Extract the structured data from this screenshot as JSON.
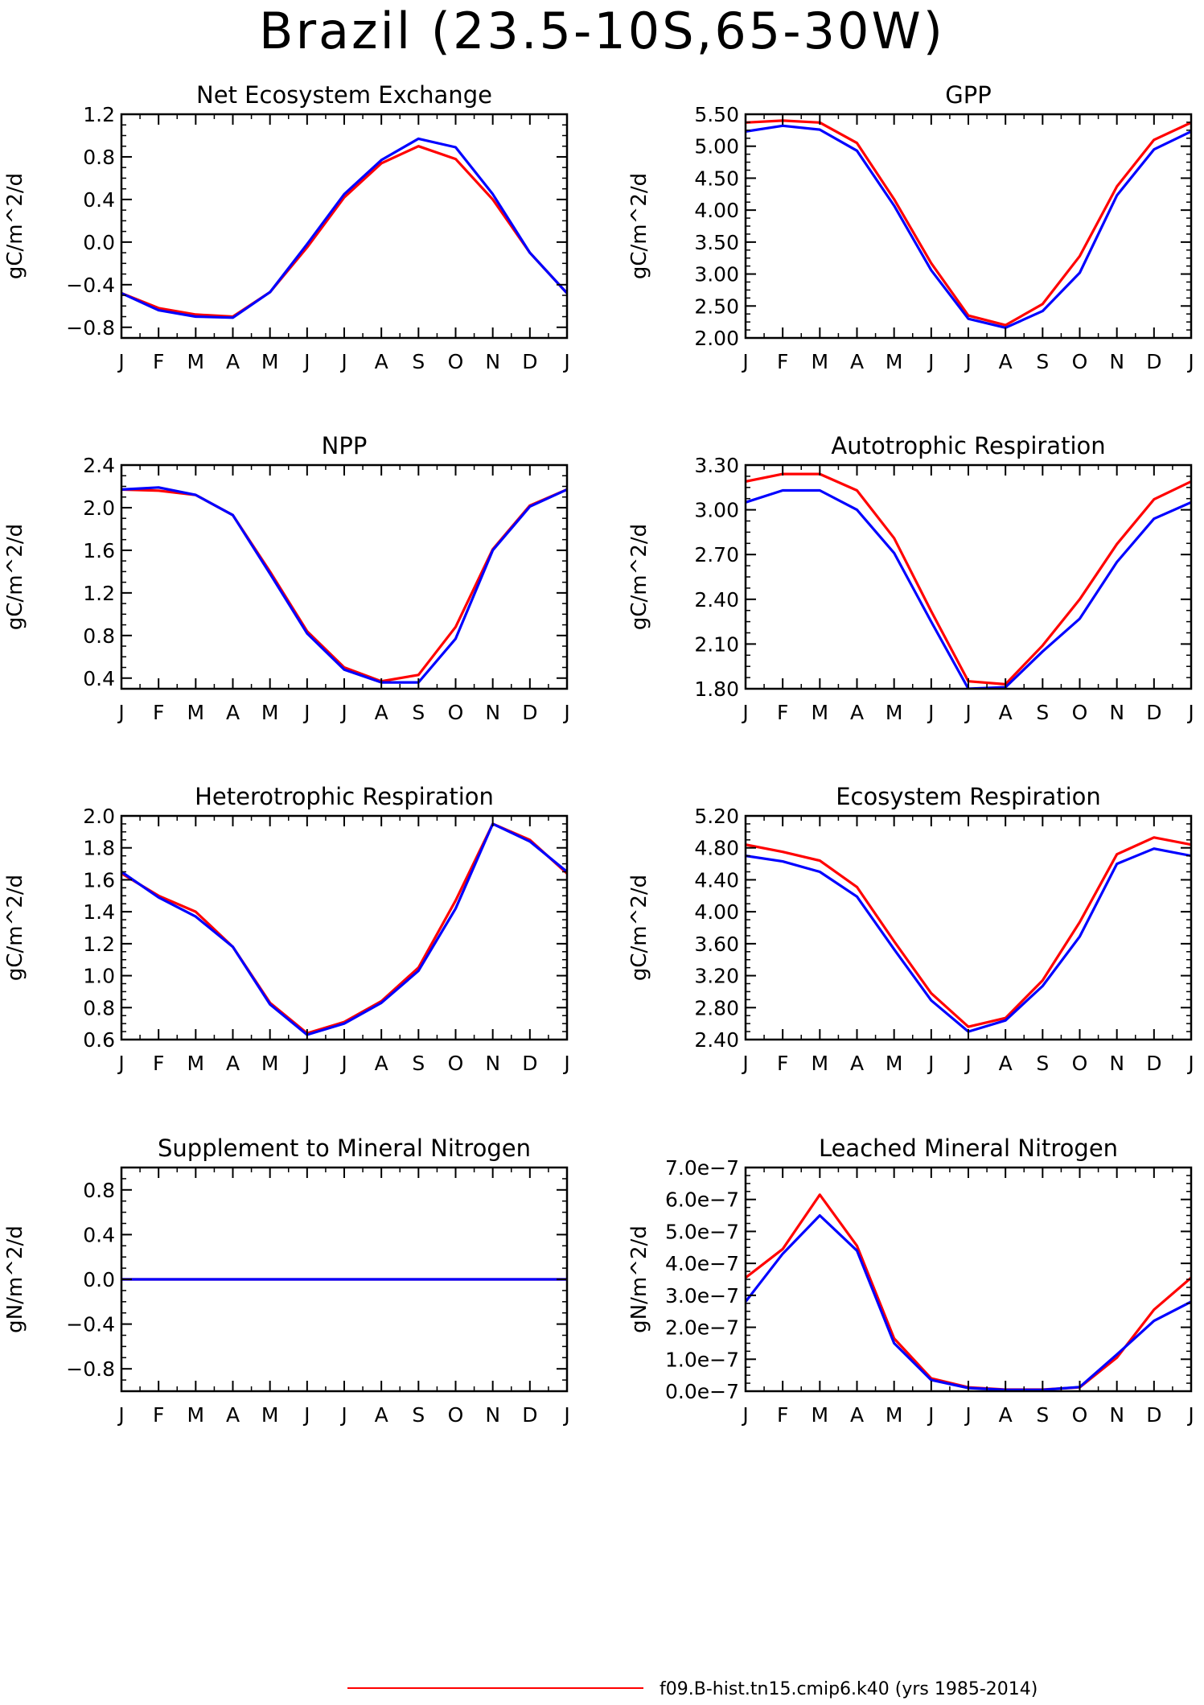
{
  "page": {
    "title": "Brazil (23.5-10S,65-30W)"
  },
  "legend": {
    "entries": [
      {
        "label": "f09.B-hist.tn15.cmip6.k40 (yrs 1985-2014)",
        "color": "#ff0000"
      }
    ]
  },
  "colors": {
    "series_red": "#ff0000",
    "series_blue": "#0000ff"
  },
  "chart_data": [
    {
      "type": "line",
      "title": "Net Ecosystem Exchange",
      "ylabel": "gC/m^2/d",
      "x": [
        "J",
        "F",
        "M",
        "A",
        "M",
        "J",
        "J",
        "A",
        "S",
        "O",
        "N",
        "D",
        "J"
      ],
      "ylim": [
        -0.9,
        1.2
      ],
      "yticks": [
        -0.8,
        -0.4,
        0.0,
        0.4,
        0.8,
        1.2
      ],
      "ytick_labels": [
        "−0.8",
        "−0.4",
        "0.0",
        "0.4",
        "0.8",
        "1.2"
      ],
      "series": [
        {
          "color": "#ff0000",
          "values": [
            -0.48,
            -0.62,
            -0.68,
            -0.7,
            -0.47,
            -0.05,
            0.42,
            0.74,
            0.9,
            0.78,
            0.4,
            -0.1,
            -0.48
          ]
        },
        {
          "color": "#0000ff",
          "values": [
            -0.48,
            -0.64,
            -0.7,
            -0.71,
            -0.47,
            -0.02,
            0.45,
            0.77,
            0.97,
            0.89,
            0.45,
            -0.1,
            -0.48
          ]
        }
      ]
    },
    {
      "type": "line",
      "title": "GPP",
      "ylabel": "gC/m^2/d",
      "x": [
        "J",
        "F",
        "M",
        "A",
        "M",
        "J",
        "J",
        "A",
        "S",
        "O",
        "N",
        "D",
        "J"
      ],
      "ylim": [
        2.0,
        5.5
      ],
      "yticks": [
        2.0,
        2.5,
        3.0,
        3.5,
        4.0,
        4.5,
        5.0,
        5.5
      ],
      "ytick_labels": [
        "2.00",
        "2.50",
        "3.00",
        "3.50",
        "4.00",
        "4.50",
        "5.00",
        "5.50"
      ],
      "series": [
        {
          "color": "#ff0000",
          "values": [
            5.37,
            5.4,
            5.37,
            5.05,
            4.17,
            3.17,
            2.35,
            2.2,
            2.53,
            3.28,
            4.37,
            5.1,
            5.37
          ]
        },
        {
          "color": "#0000ff",
          "values": [
            5.23,
            5.32,
            5.26,
            4.93,
            4.07,
            3.06,
            2.3,
            2.16,
            2.42,
            3.02,
            4.23,
            4.95,
            5.23
          ]
        }
      ]
    },
    {
      "type": "line",
      "title": "NPP",
      "ylabel": "gC/m^2/d",
      "x": [
        "J",
        "F",
        "M",
        "A",
        "M",
        "J",
        "J",
        "A",
        "S",
        "O",
        "N",
        "D",
        "J"
      ],
      "ylim": [
        0.3,
        2.4
      ],
      "yticks": [
        0.4,
        0.8,
        1.2,
        1.6,
        2.0,
        2.4
      ],
      "ytick_labels": [
        "0.4",
        "0.8",
        "1.2",
        "1.6",
        "2.0",
        "2.4"
      ],
      "series": [
        {
          "color": "#ff0000",
          "values": [
            2.17,
            2.16,
            2.12,
            1.93,
            1.4,
            0.84,
            0.5,
            0.37,
            0.43,
            0.88,
            1.61,
            2.02,
            2.17
          ]
        },
        {
          "color": "#0000ff",
          "values": [
            2.17,
            2.19,
            2.12,
            1.93,
            1.38,
            0.82,
            0.48,
            0.36,
            0.36,
            0.77,
            1.6,
            2.01,
            2.17
          ]
        }
      ]
    },
    {
      "type": "line",
      "title": "Autotrophic Respiration",
      "ylabel": "gC/m^2/d",
      "x": [
        "J",
        "F",
        "M",
        "A",
        "M",
        "J",
        "J",
        "A",
        "S",
        "O",
        "N",
        "D",
        "J"
      ],
      "ylim": [
        1.8,
        3.3
      ],
      "yticks": [
        1.8,
        2.1,
        2.4,
        2.7,
        3.0,
        3.3
      ],
      "ytick_labels": [
        "1.80",
        "2.10",
        "2.40",
        "2.70",
        "3.00",
        "3.30"
      ],
      "series": [
        {
          "color": "#ff0000",
          "values": [
            3.19,
            3.24,
            3.24,
            3.13,
            2.81,
            2.32,
            1.85,
            1.83,
            2.09,
            2.4,
            2.77,
            3.07,
            3.19
          ]
        },
        {
          "color": "#0000ff",
          "values": [
            3.05,
            3.13,
            3.13,
            3.0,
            2.71,
            2.25,
            1.8,
            1.81,
            2.05,
            2.27,
            2.65,
            2.94,
            3.05
          ]
        }
      ]
    },
    {
      "type": "line",
      "title": "Heterotrophic Respiration",
      "ylabel": "gC/m^2/d",
      "x": [
        "J",
        "F",
        "M",
        "A",
        "M",
        "J",
        "J",
        "A",
        "S",
        "O",
        "N",
        "D",
        "J"
      ],
      "ylim": [
        0.6,
        2.0
      ],
      "yticks": [
        0.6,
        0.8,
        1.0,
        1.2,
        1.4,
        1.6,
        1.8,
        2.0
      ],
      "ytick_labels": [
        "0.6",
        "0.8",
        "1.0",
        "1.2",
        "1.4",
        "1.6",
        "1.8",
        "2.0"
      ],
      "series": [
        {
          "color": "#ff0000",
          "values": [
            1.64,
            1.5,
            1.4,
            1.18,
            0.83,
            0.64,
            0.71,
            0.84,
            1.05,
            1.47,
            1.95,
            1.85,
            1.64
          ]
        },
        {
          "color": "#0000ff",
          "values": [
            1.65,
            1.49,
            1.37,
            1.18,
            0.82,
            0.63,
            0.7,
            0.83,
            1.03,
            1.42,
            1.95,
            1.84,
            1.65
          ]
        }
      ]
    },
    {
      "type": "line",
      "title": "Ecosystem Respiration",
      "ylabel": "gC/m^2/d",
      "x": [
        "J",
        "F",
        "M",
        "A",
        "M",
        "J",
        "J",
        "A",
        "S",
        "O",
        "N",
        "D",
        "J"
      ],
      "ylim": [
        2.4,
        5.2
      ],
      "yticks": [
        2.4,
        2.8,
        3.2,
        3.6,
        4.0,
        4.4,
        4.8,
        5.2
      ],
      "ytick_labels": [
        "2.40",
        "2.80",
        "3.20",
        "3.60",
        "4.00",
        "4.40",
        "4.80",
        "5.20"
      ],
      "series": [
        {
          "color": "#ff0000",
          "values": [
            4.84,
            4.75,
            4.64,
            4.31,
            3.63,
            2.98,
            2.56,
            2.67,
            3.14,
            3.87,
            4.72,
            4.93,
            4.84
          ]
        },
        {
          "color": "#0000ff",
          "values": [
            4.7,
            4.63,
            4.5,
            4.19,
            3.53,
            2.89,
            2.5,
            2.64,
            3.07,
            3.69,
            4.6,
            4.79,
            4.7
          ]
        }
      ]
    },
    {
      "type": "line",
      "title": "Supplement to Mineral Nitrogen",
      "ylabel": "gN/m^2/d",
      "x": [
        "J",
        "F",
        "M",
        "A",
        "M",
        "J",
        "J",
        "A",
        "S",
        "O",
        "N",
        "D",
        "J"
      ],
      "ylim": [
        -1.0,
        1.0
      ],
      "yticks": [
        -0.8,
        -0.4,
        0.0,
        0.4,
        0.8
      ],
      "ytick_labels": [
        "−0.8",
        "−0.4",
        "0.0",
        "0.4",
        "0.8"
      ],
      "series": [
        {
          "color": "#ff0000",
          "values": [
            0,
            0,
            0,
            0,
            0,
            0,
            0,
            0,
            0,
            0,
            0,
            0,
            0
          ]
        },
        {
          "color": "#0000ff",
          "values": [
            0,
            0,
            0,
            0,
            0,
            0,
            0,
            0,
            0,
            0,
            0,
            0,
            0
          ]
        }
      ]
    },
    {
      "type": "line",
      "title": "Leached Mineral Nitrogen",
      "ylabel": "gN/m^2/d",
      "x": [
        "J",
        "F",
        "M",
        "A",
        "M",
        "J",
        "J",
        "A",
        "S",
        "O",
        "N",
        "D",
        "J"
      ],
      "ylim": [
        0.0,
        7e-07
      ],
      "yticks": [
        0.0,
        1e-07,
        2e-07,
        3e-07,
        4e-07,
        5e-07,
        6e-07,
        7e-07
      ],
      "ytick_labels": [
        "0.0e−7",
        "1.0e−7",
        "2.0e−7",
        "3.0e−7",
        "4.0e−7",
        "5.0e−7",
        "6.0e−7",
        "7.0e−7"
      ],
      "series": [
        {
          "color": "#ff0000",
          "values": [
            3.55e-07,
            4.45e-07,
            6.15e-07,
            4.55e-07,
            1.65e-07,
            4e-08,
            1.2e-08,
            5e-09,
            5e-09,
            1.2e-08,
            1.05e-07,
            2.55e-07,
            3.55e-07
          ]
        },
        {
          "color": "#0000ff",
          "values": [
            2.8e-07,
            4.3e-07,
            5.5e-07,
            4.4e-07,
            1.5e-07,
            3.5e-08,
            1e-08,
            4e-09,
            4e-09,
            1.3e-08,
            1.15e-07,
            2.2e-07,
            2.8e-07
          ]
        }
      ]
    }
  ]
}
